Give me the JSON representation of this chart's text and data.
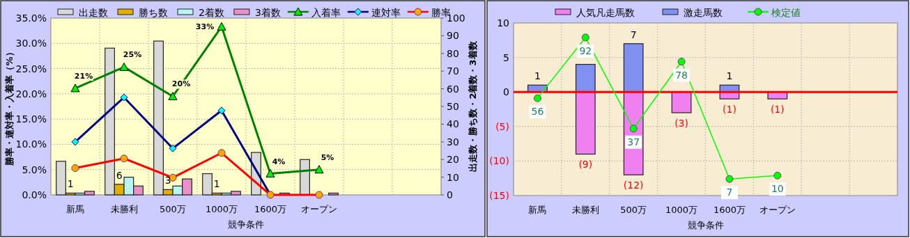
{
  "chart_data": [
    {
      "type": "bar",
      "categories": [
        "新馬",
        "未勝利",
        "500万",
        "1000万",
        "1600万",
        "オープン",
        null,
        null
      ],
      "xlabel": "競争条件",
      "ylabel": "勝率・連対率・入着率（%）",
      "y2label": "出走数・勝ち数・2着数・3着数",
      "ylim": [
        0,
        35
      ],
      "yticks": [
        {
          "value": 0,
          "label": "0.0%"
        },
        {
          "value": 5,
          "label": "5.0%"
        },
        {
          "value": 10,
          "label": "10.0%"
        },
        {
          "value": 15,
          "label": "15.0%"
        },
        {
          "value": 20,
          "label": "20.0%"
        },
        {
          "value": 25,
          "label": "25.0%"
        },
        {
          "value": 30,
          "label": "30.0%"
        },
        {
          "value": 35,
          "label": "35.0%"
        }
      ],
      "y2lim": [
        0,
        100
      ],
      "y2ticks": [
        0,
        10,
        20,
        30,
        40,
        50,
        60,
        70,
        80,
        90,
        100
      ],
      "grid": true,
      "legend": "top",
      "series": [
        {
          "name": "出走数",
          "color": "#d8d8d8",
          "axis": "y2",
          "values": [
            19,
            83,
            87,
            12,
            24,
            20,
            null,
            null
          ]
        },
        {
          "name": "勝ち数",
          "color": "#e0b000",
          "axis": "y2",
          "values": [
            1,
            6,
            3,
            1,
            0,
            0,
            null,
            null
          ],
          "value_labels": [
            "1",
            "6",
            "3",
            "1",
            null,
            null,
            null,
            null
          ]
        },
        {
          "name": "2着数",
          "color": "#b8f4f4",
          "axis": "y2",
          "values": [
            1,
            10,
            5,
            1,
            0,
            0,
            null,
            null
          ]
        },
        {
          "name": "3着数",
          "color": "#e890c8",
          "axis": "y2",
          "values": [
            2,
            5,
            9,
            2,
            1,
            1,
            null,
            null
          ]
        },
        {
          "name": "入着率",
          "type": "line",
          "color": "#008000",
          "marker": "triangle",
          "values": [
            21.1,
            25.3,
            19.5,
            33.3,
            4.2,
            5.0,
            null,
            null
          ],
          "value_labels": [
            "21%",
            "25%",
            "20%",
            "33%",
            "4%",
            "5%",
            null,
            null
          ]
        },
        {
          "name": "連対率",
          "type": "line",
          "color": "#000080",
          "marker": "diamond",
          "values": [
            10.5,
            19.3,
            9.2,
            16.7,
            0,
            null,
            null,
            null
          ]
        },
        {
          "name": "勝率",
          "type": "line",
          "color": "#ff0000",
          "marker": "circle",
          "values": [
            5.3,
            7.2,
            3.4,
            8.3,
            0,
            0,
            null,
            null
          ]
        }
      ]
    },
    {
      "type": "bar",
      "stacked": true,
      "categories": [
        "新馬",
        "未勝利",
        "500万",
        "1000万",
        "1600万",
        "オープン",
        null,
        null
      ],
      "xlabel": "競争条件",
      "ylim": [
        -15,
        10
      ],
      "yticks": [
        {
          "value": -15,
          "label": "(15)"
        },
        {
          "value": -10,
          "label": "(10)"
        },
        {
          "value": -5,
          "label": "(5)"
        },
        0,
        5,
        10
      ],
      "grid": true,
      "legend": "top",
      "ref_lines": [
        {
          "axis": "y",
          "value": 0,
          "color": "#ff0000"
        }
      ],
      "series": [
        {
          "name": "人気凡走馬数",
          "color": "#f080f0",
          "values": [
            null,
            -9,
            -12,
            -3,
            -1,
            -1,
            null,
            null
          ],
          "value_labels": [
            null,
            "(9)",
            "(12)",
            "(3)",
            "(1)",
            "(1)",
            null,
            null
          ]
        },
        {
          "name": "激走馬数",
          "color": "#8090f0",
          "values": [
            1,
            4,
            7,
            null,
            1,
            null,
            null,
            null
          ],
          "value_labels": [
            "1",
            null,
            "7",
            null,
            "1",
            null,
            null,
            null
          ]
        },
        {
          "name": "検定値",
          "type": "line",
          "color": "#00ff00",
          "marker": "circle",
          "values": [
            -0.9,
            7.9,
            -5.3,
            4.4,
            -12.6,
            -12.1,
            null,
            null
          ]
        }
      ],
      "annotations": [
        {
          "text": "56",
          "x": "新馬",
          "y": -0.9
        },
        {
          "text": "92",
          "x": "未勝利",
          "y": 7.9
        },
        {
          "text": "37",
          "x": "500万",
          "y": -5.3
        },
        {
          "text": "78",
          "x": "1000万",
          "y": 4.4
        },
        {
          "text": "7",
          "x": "1600万",
          "y": -12.6
        },
        {
          "text": "10",
          "x": "オープン",
          "y": -12.1
        }
      ]
    }
  ]
}
